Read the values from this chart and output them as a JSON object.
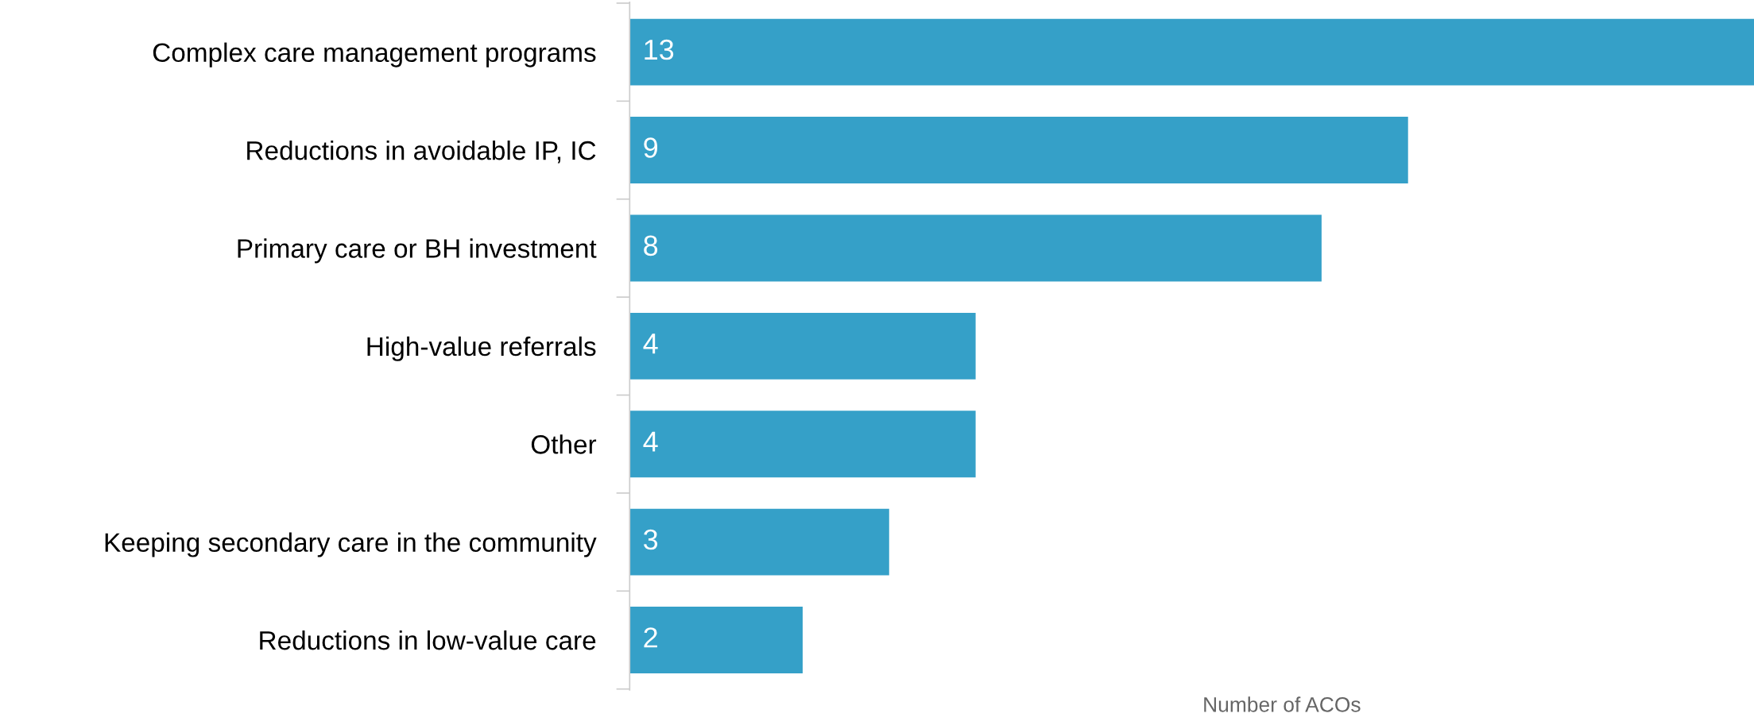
{
  "chart_data": {
    "type": "bar",
    "orientation": "horizontal",
    "xlabel": "Number of ACOs",
    "categories": [
      "Complex care management programs",
      "Reductions in avoidable IP, IC",
      "Primary care or BH investment",
      "High-value referrals",
      "Other",
      "Keeping secondary care in the community",
      "Reductions in low-value care"
    ],
    "values": [
      13,
      9,
      8,
      4,
      4,
      3,
      2
    ],
    "color": "#35a0c8",
    "xlim": [
      0,
      13
    ],
    "data_labels": true,
    "tick_labels": "y",
    "grid": false,
    "legend": false
  }
}
